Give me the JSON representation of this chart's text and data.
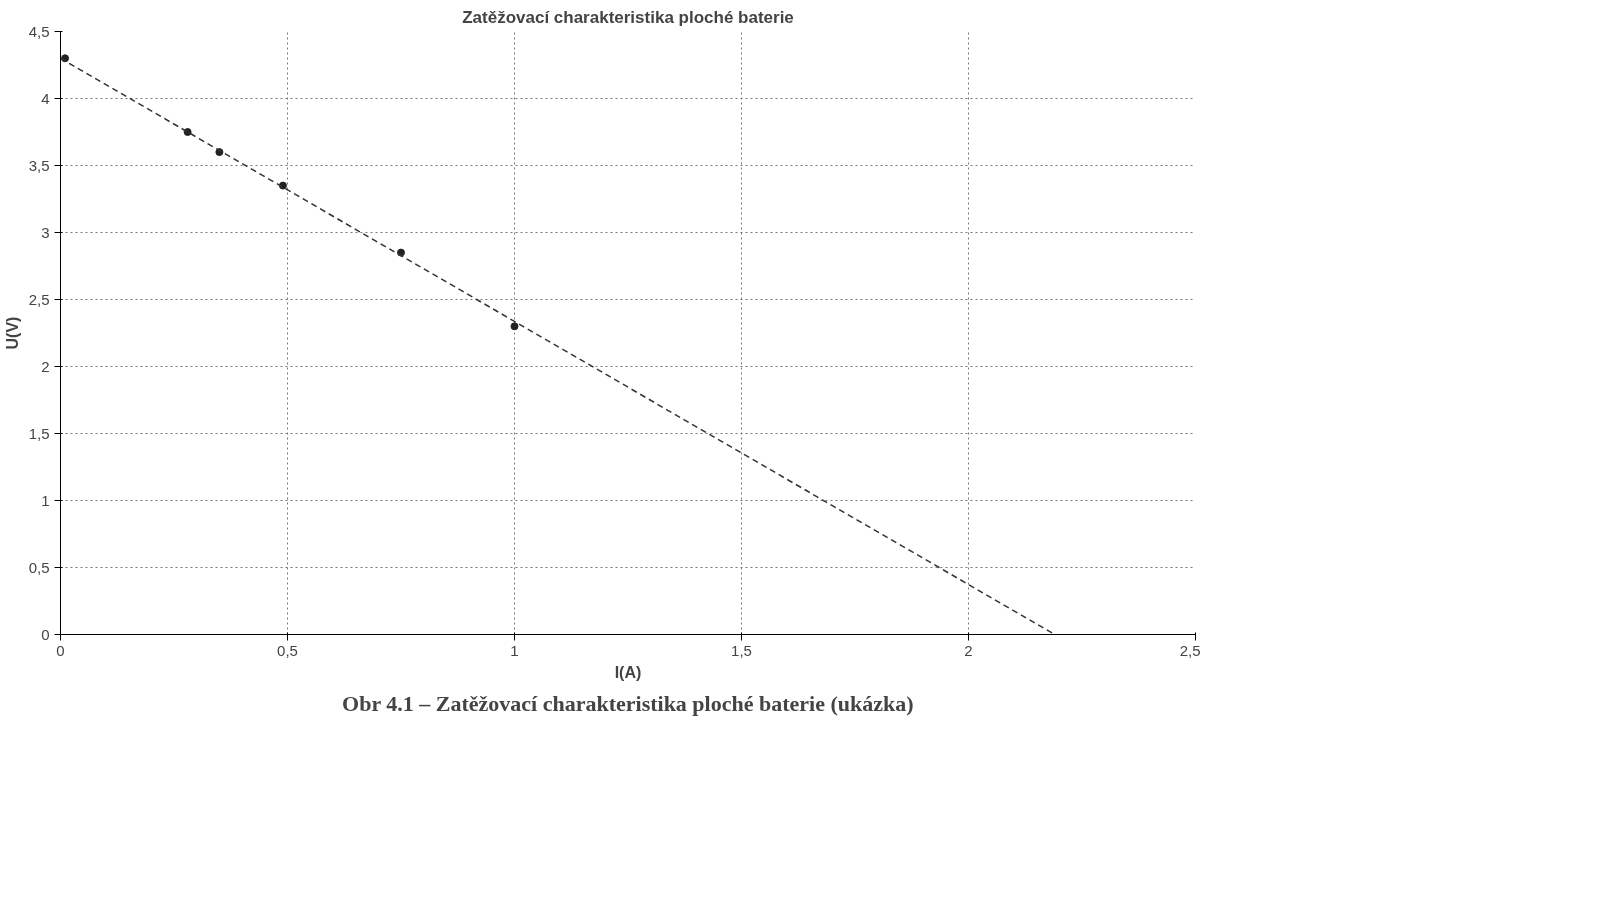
{
  "chart_data": {
    "type": "scatter",
    "title": "Zatěžovací charakteristika ploché baterie",
    "xlabel": "I(A)",
    "ylabel": "U(V)",
    "annotations": [
      "Obr 4.1 – Zatěžovací charakteristika ploché baterie (ukázka)"
    ],
    "series": [
      {
        "color": "#222222",
        "marker": "circle",
        "x": [
          0.01,
          0.28,
          0.35,
          0.49,
          0.75,
          1.0
        ],
        "values": [
          4.3,
          3.75,
          3.6,
          3.35,
          2.85,
          2.3
        ]
      },
      {
        "type": "line",
        "color": "#333333",
        "marker": "none",
        "line_style": "dashed",
        "x": [
          0,
          2.19
        ],
        "values": [
          4.3,
          0
        ]
      }
    ],
    "xlim": [
      0,
      2.5
    ],
    "ylim": [
      0,
      4.5
    ],
    "xticks": [
      0,
      {
        "value": 0.5,
        "label": "0,5"
      },
      1,
      {
        "value": 1.5,
        "label": "1,5"
      },
      2,
      {
        "value": 2.5,
        "label": "2,5"
      }
    ],
    "yticks": [
      0,
      {
        "value": 0.5,
        "label": "0,5"
      },
      1,
      {
        "value": 1.5,
        "label": "1,5"
      },
      2,
      {
        "value": 2.5,
        "label": "2,5"
      },
      3,
      {
        "value": 3.5,
        "label": "3,5"
      },
      4,
      {
        "value": 4.5,
        "label": "4,5"
      }
    ],
    "grid": true
  }
}
